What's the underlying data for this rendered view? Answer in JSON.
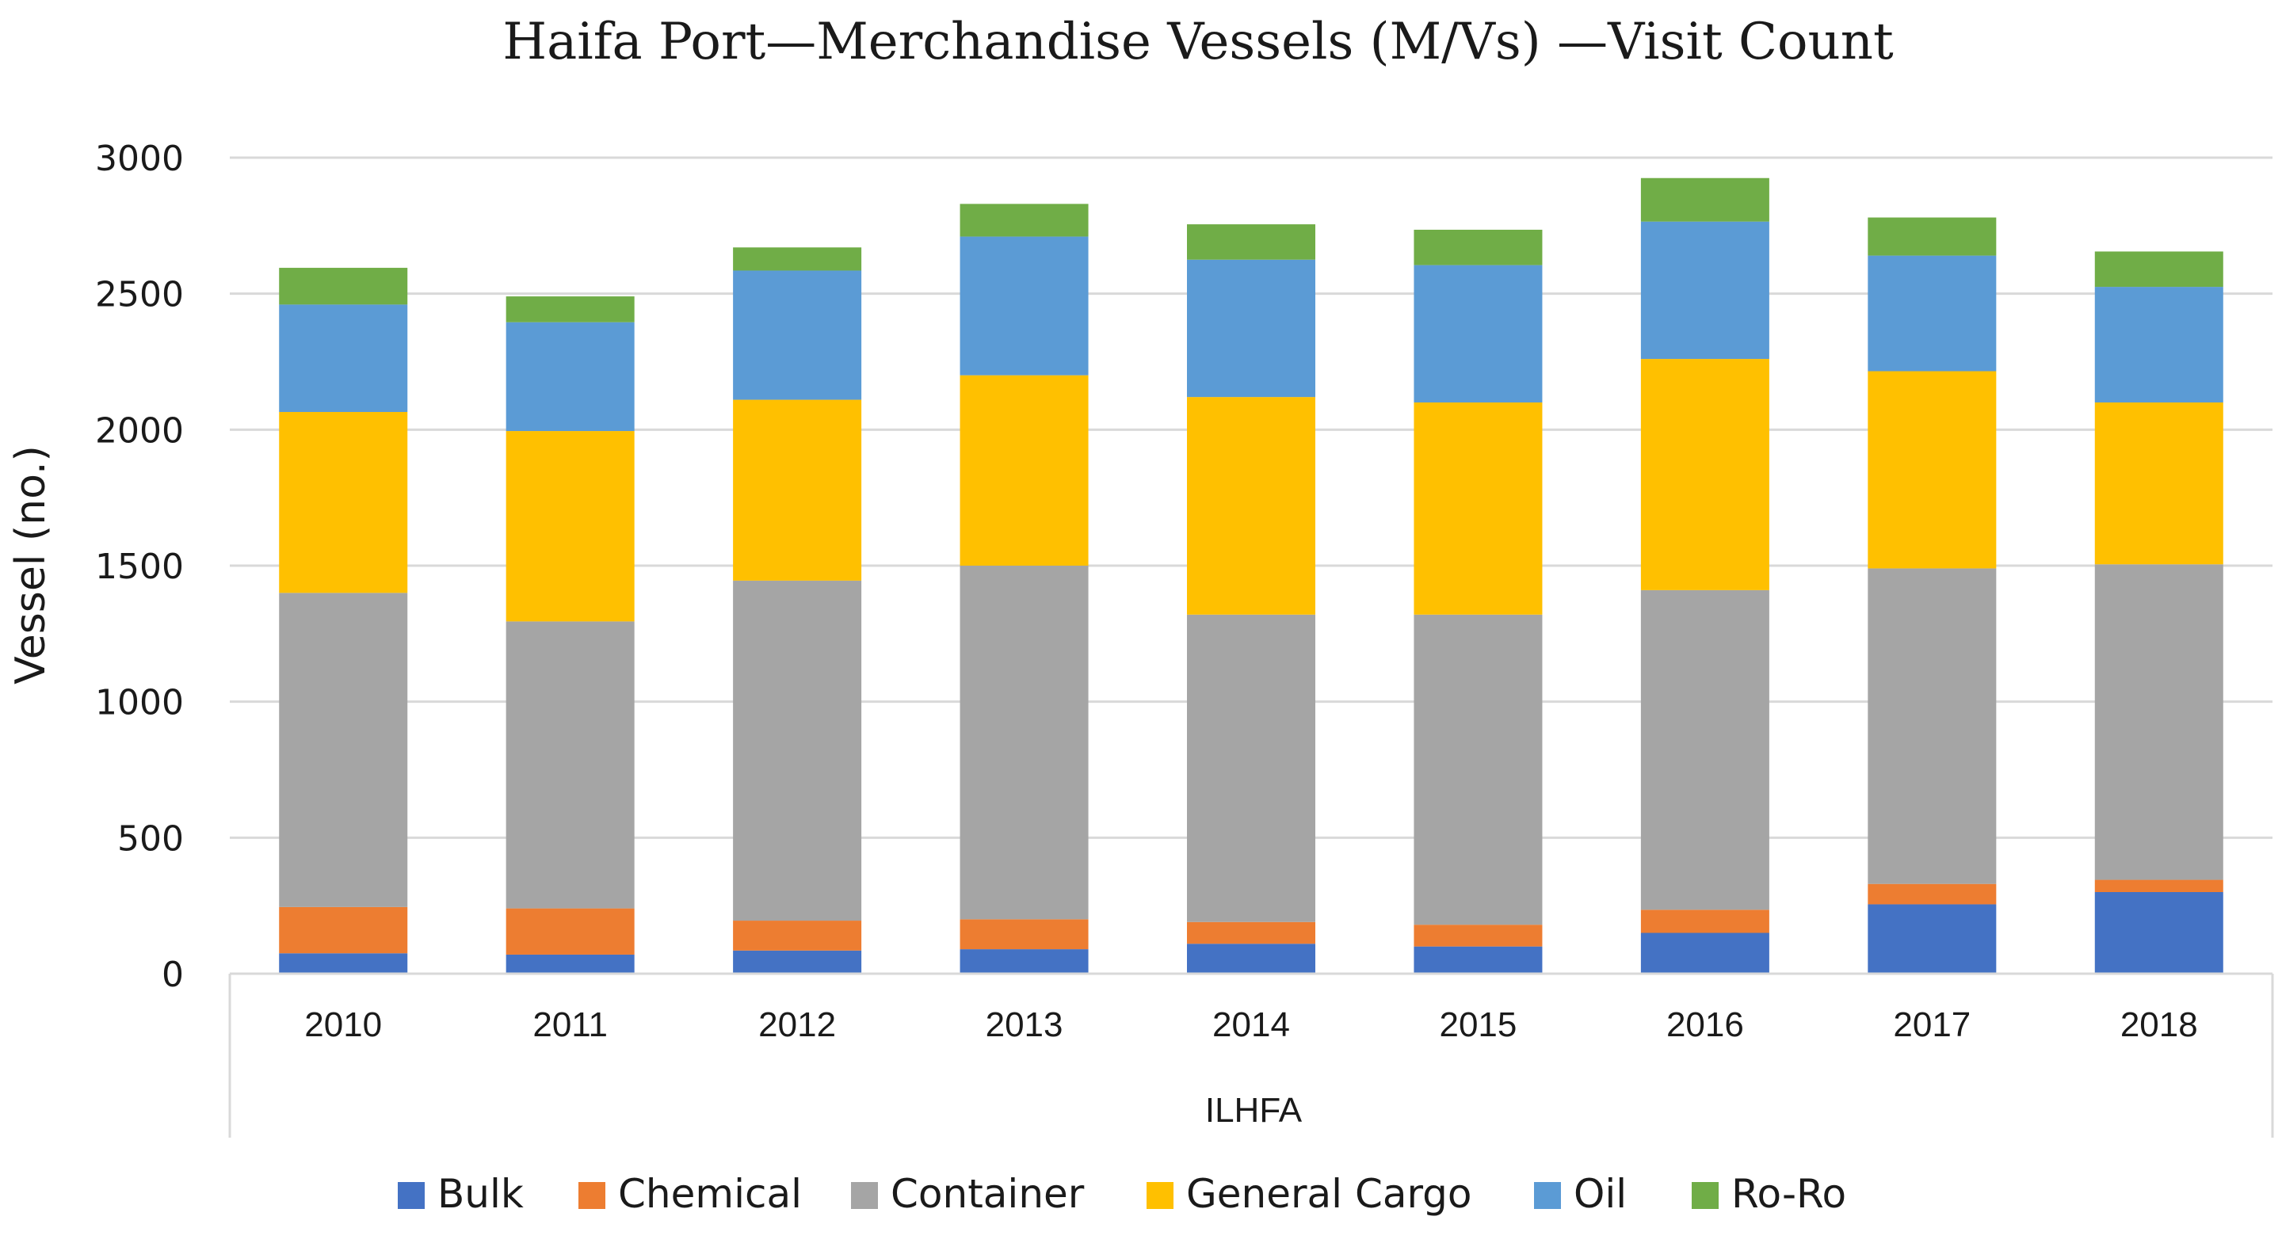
{
  "chart_data": {
    "type": "bar",
    "stacked": true,
    "title": "Haifa Port—Merchandise Vessels (M/Vs) —Visit Count",
    "xlabel": "",
    "ylabel": "Vessel (no.)",
    "group_label": "ILHFA",
    "ylim": [
      0,
      3000
    ],
    "yticks": [
      0,
      500,
      1000,
      1500,
      2000,
      2500,
      3000
    ],
    "grid": true,
    "legend_position": "bottom",
    "categories": [
      "2010",
      "2011",
      "2012",
      "2013",
      "2014",
      "2015",
      "2016",
      "2017",
      "2018"
    ],
    "series": [
      {
        "name": "Bulk",
        "color": "#4472C4",
        "values": [
          75,
          70,
          85,
          90,
          110,
          100,
          150,
          255,
          300
        ]
      },
      {
        "name": "Chemical",
        "color": "#ED7D31",
        "values": [
          170,
          170,
          110,
          110,
          80,
          80,
          85,
          75,
          45
        ]
      },
      {
        "name": "Container",
        "color": "#A5A5A5",
        "values": [
          1155,
          1055,
          1250,
          1300,
          1130,
          1140,
          1175,
          1160,
          1160
        ]
      },
      {
        "name": "General Cargo",
        "color": "#FFC000",
        "values": [
          665,
          700,
          665,
          700,
          800,
          780,
          850,
          725,
          595
        ]
      },
      {
        "name": "Oil",
        "color": "#5B9BD5",
        "values": [
          395,
          400,
          475,
          510,
          505,
          505,
          505,
          425,
          425
        ]
      },
      {
        "name": "Ro-Ro",
        "color": "#70AD47",
        "values": [
          135,
          95,
          85,
          120,
          130,
          130,
          160,
          140,
          130
        ]
      }
    ]
  }
}
